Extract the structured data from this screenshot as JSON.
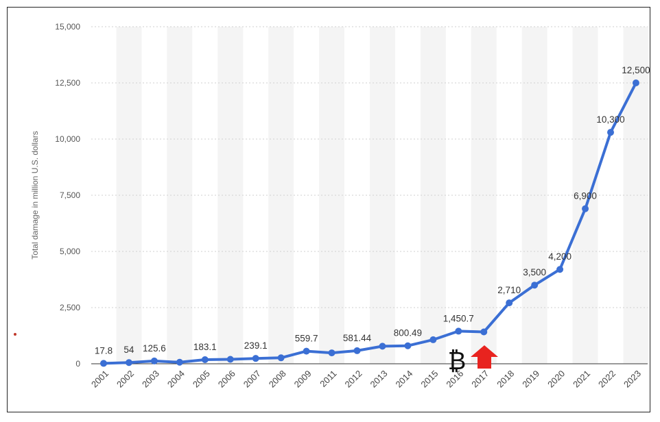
{
  "chart_data": {
    "type": "line",
    "title": "",
    "xlabel": "",
    "ylabel": "Total damage in million U.S. dollars",
    "categories": [
      "2001",
      "2002",
      "2003",
      "2004",
      "2005",
      "2006",
      "2007",
      "2008",
      "2009",
      "2011",
      "2012",
      "2013",
      "2014",
      "2015",
      "2016",
      "2017",
      "2018",
      "2019",
      "2020",
      "2021",
      "2022",
      "2023"
    ],
    "series": [
      {
        "values": [
          17.8,
          54,
          125.6,
          68,
          183.1,
          198,
          239.1,
          265,
          559.7,
          485,
          581.44,
          781,
          800.49,
          1070,
          1450.7,
          1418,
          2710,
          3500,
          4200,
          6900,
          10300,
          12500
        ]
      }
    ],
    "data_labels": [
      "17.8",
      "54",
      "125.6",
      "",
      "183.1",
      "",
      "239.1",
      "",
      "559.7",
      "",
      "581.44",
      "",
      "800.49",
      "",
      "1,450.7",
      "",
      "2,710",
      "3,500",
      "4,200",
      "6,900",
      "10,300",
      "12,500"
    ],
    "ylim": [
      0,
      15000
    ],
    "yticks": [
      "0",
      "2,500",
      "5,000",
      "7,500",
      "10,000",
      "12,500",
      "15,000"
    ],
    "yticks_values": [
      0,
      2500,
      5000,
      7500,
      10000,
      12500,
      15000
    ],
    "grid": "horizontal dotted",
    "line_color": "#3b6fd4",
    "band_color": "#f4f4f4",
    "annotations": {
      "bitcoin_symbol": "₿",
      "arrow_color": "#e8231f",
      "arrow_icon": "arrow-up-icon"
    }
  }
}
